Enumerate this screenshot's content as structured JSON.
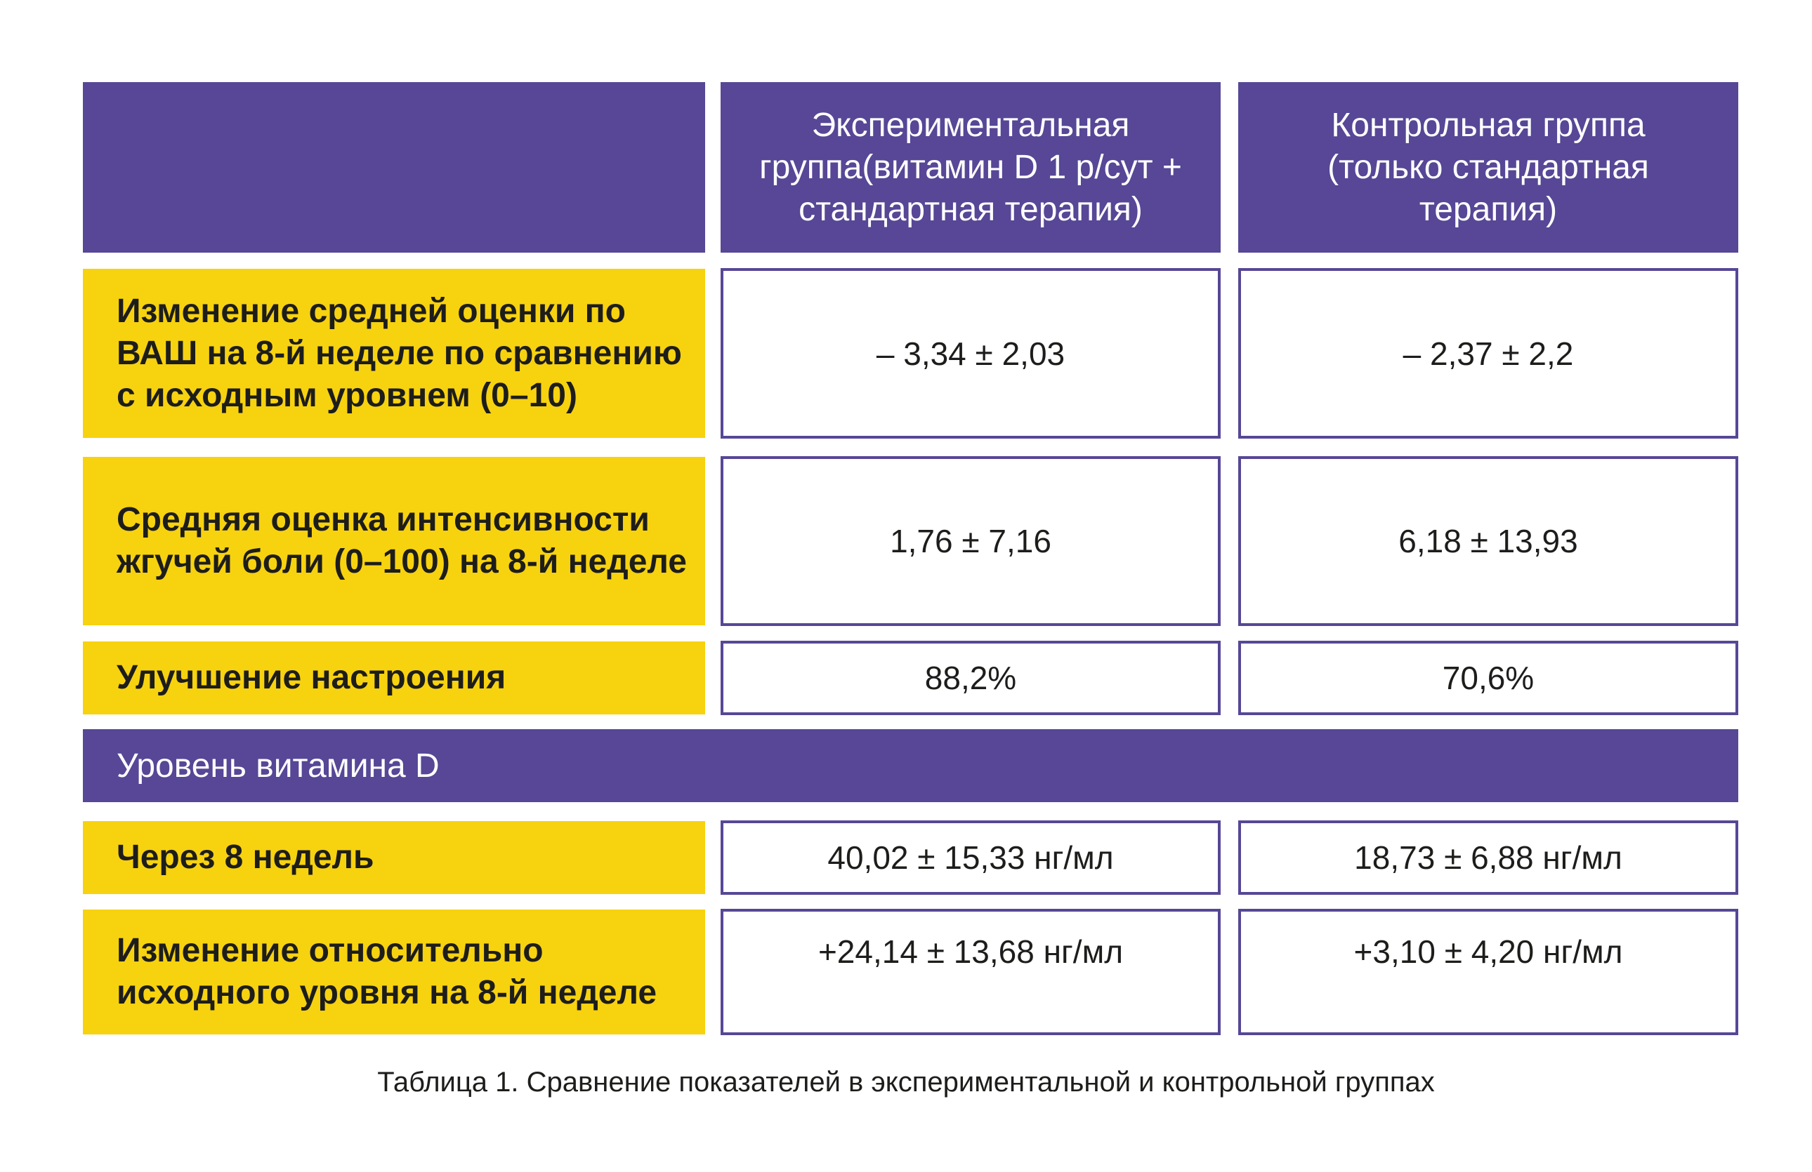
{
  "header": {
    "corner": "",
    "col1": "Экспериментальная группа(витамин D 1 р/сут + стандартная терапия)",
    "col2": "Контрольная группа (только стандартная терапия)"
  },
  "rows": [
    {
      "label": "Изменение средней оценки по ВАШ на 8-й неделе по сравнению с исходным уровнем (0–10)",
      "exp": "– 3,34 ± 2,03",
      "ctrl": "– 2,37 ± 2,2"
    },
    {
      "label": "Средняя оценка интенсивности жгучей боли (0–100) на 8-й неделе",
      "exp": "1,76 ± 7,16",
      "ctrl": "6,18 ± 13,93"
    },
    {
      "label": "Улучшение настроения",
      "exp": "88,2%",
      "ctrl": "70,6%"
    }
  ],
  "section": {
    "title": "Уровень витамина D"
  },
  "rows2": [
    {
      "label": "Через 8 недель",
      "exp": "40,02 ± 15,33 нг/мл",
      "ctrl": "18,73 ± 6,88 нг/мл"
    },
    {
      "label": "Изменение относительно исходного уровня на 8-й неделе",
      "exp": "+24,14 ± 13,68 нг/мл",
      "ctrl": "+3,10 ± 4,20 нг/мл"
    }
  ],
  "caption": "Таблица 1. Сравнение показателей в экспериментальной и контрольной группах",
  "colors": {
    "purple": "#574796",
    "yellow": "#f7d20f",
    "text": "#1d1d1b"
  }
}
